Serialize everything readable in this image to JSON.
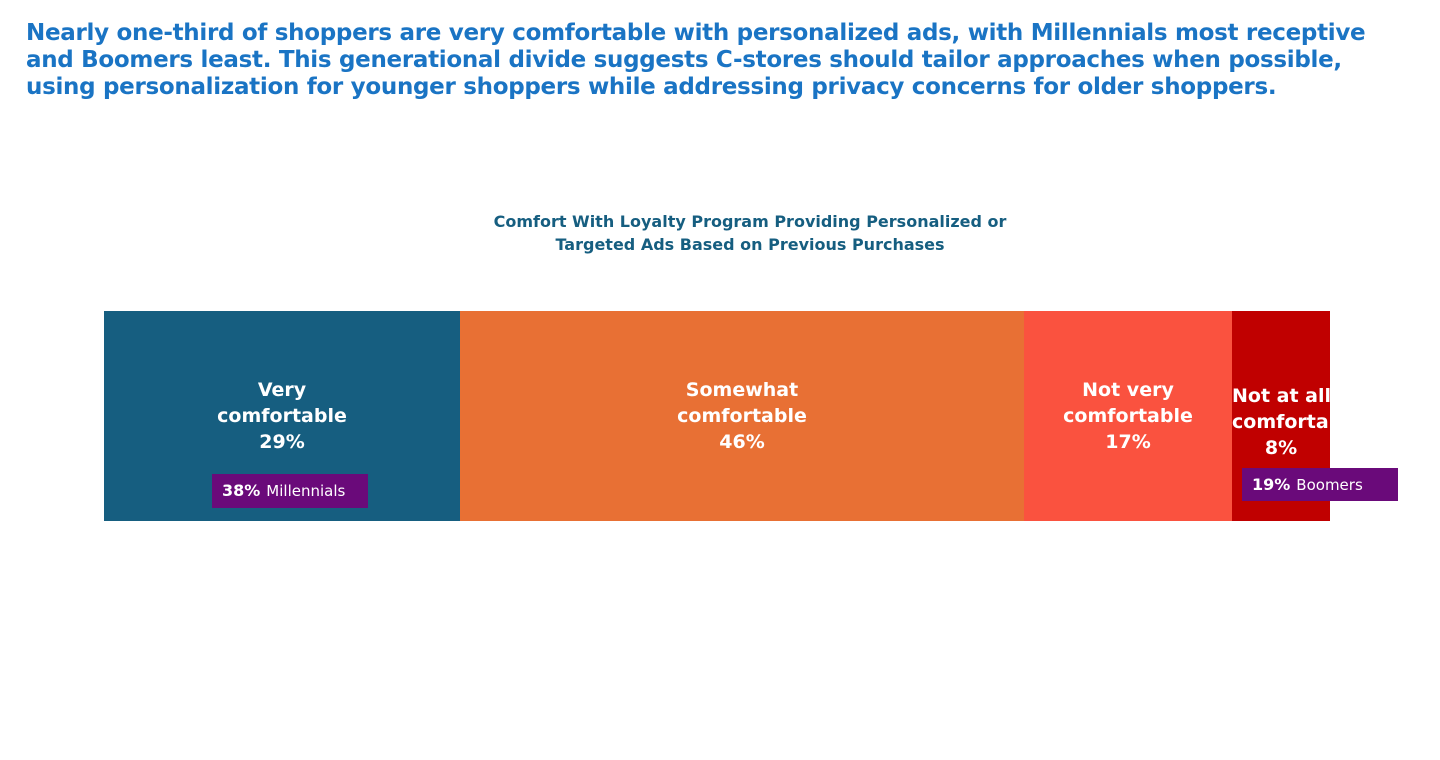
{
  "headline": "Nearly one-third of shoppers are very comfortable with personalized ads, with Millennials most receptive and Boomers least. This generational divide suggests C-stores should tailor approaches when possible, using personalization for younger shoppers while addressing privacy concerns for older shoppers.",
  "chart_data": {
    "type": "bar",
    "orientation": "horizontal-stacked",
    "title_line1": "Comfort With Loyalty Program Providing Personalized or",
    "title_line2": "Targeted Ads Based on Previous Purchases",
    "categories": [
      "Very comfortable",
      "Somewhat comfortable",
      "Not very comfortable",
      "Not at all comfortable"
    ],
    "values": [
      29,
      46,
      17,
      8
    ],
    "value_labels": [
      "29%",
      "46%",
      "17%",
      "8%"
    ],
    "label_lines": [
      [
        "Very",
        "comfortable",
        "29%"
      ],
      [
        "Somewhat",
        "comfortable",
        "46%"
      ],
      [
        "Not very",
        "comfortable",
        "17%"
      ],
      [
        "Not at all",
        "comfortable",
        "8%"
      ]
    ],
    "colors": [
      "#165e80",
      "#e87034",
      "#fa523f",
      "#c00000"
    ],
    "callouts": [
      {
        "segment": "Very comfortable",
        "value": "38%",
        "group": "Millennials",
        "color": "#6a0a7a"
      },
      {
        "segment": "Not at all comfortable",
        "value": "19%",
        "group": "Boomers",
        "color": "#6a0a7a"
      }
    ]
  }
}
